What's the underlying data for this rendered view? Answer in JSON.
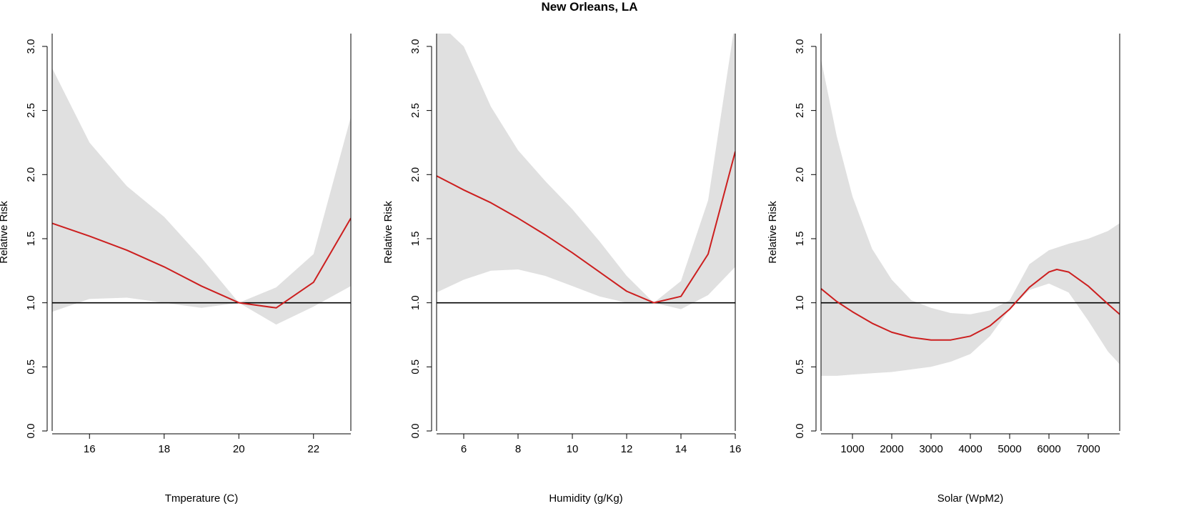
{
  "figure": {
    "title": "New Orleans, LA"
  },
  "chart_data": [
    {
      "type": "line",
      "title": "",
      "xlabel": "Tmperature (C)",
      "ylabel": "Relative Risk",
      "xlim": [
        15,
        23
      ],
      "ylim": [
        0,
        3.1
      ],
      "xticks": [
        16,
        18,
        20,
        22
      ],
      "yticks": [
        0.0,
        0.5,
        1.0,
        1.5,
        2.0,
        2.5,
        3.0
      ],
      "reference_line": 1.0,
      "colors": {
        "line": "#cc1f1f",
        "band": "#e0e0e0",
        "reference": "#000000"
      },
      "series": [
        {
          "x": [
            15,
            16,
            17,
            18,
            19,
            20,
            21,
            22,
            23
          ],
          "y": [
            1.62,
            1.52,
            1.41,
            1.28,
            1.13,
            1.0,
            0.96,
            1.16,
            1.66
          ]
        }
      ],
      "band": {
        "x": [
          15,
          16,
          17,
          18,
          19,
          20,
          21,
          22,
          23
        ],
        "lower": [
          0.93,
          1.03,
          1.04,
          1.0,
          0.96,
          1.0,
          0.83,
          0.97,
          1.13
        ],
        "upper": [
          2.83,
          2.25,
          1.91,
          1.67,
          1.35,
          1.0,
          1.12,
          1.38,
          2.45
        ]
      }
    },
    {
      "type": "line",
      "title": "",
      "xlabel": "Humidity (g/Kg)",
      "ylabel": "Relative Risk",
      "xlim": [
        5,
        16
      ],
      "ylim": [
        0,
        3.1
      ],
      "xticks": [
        6,
        8,
        10,
        12,
        14,
        16
      ],
      "yticks": [
        0.0,
        0.5,
        1.0,
        1.5,
        2.0,
        2.5,
        3.0
      ],
      "reference_line": 1.0,
      "colors": {
        "line": "#cc1f1f",
        "band": "#e0e0e0",
        "reference": "#000000"
      },
      "series": [
        {
          "x": [
            5,
            6,
            7,
            8,
            9,
            10,
            11,
            12,
            13,
            14,
            15,
            16
          ],
          "y": [
            1.99,
            1.88,
            1.78,
            1.66,
            1.53,
            1.39,
            1.24,
            1.09,
            1.0,
            1.05,
            1.38,
            2.18
          ]
        }
      ],
      "band": {
        "x": [
          5,
          6,
          7,
          8,
          9,
          10,
          11,
          12,
          13,
          14,
          15,
          16
        ],
        "lower": [
          1.08,
          1.18,
          1.25,
          1.26,
          1.21,
          1.13,
          1.05,
          1.0,
          1.0,
          0.95,
          1.06,
          1.28
        ],
        "upper": [
          3.2,
          3.0,
          2.53,
          2.19,
          1.95,
          1.73,
          1.48,
          1.21,
          1.0,
          1.17,
          1.8,
          3.2
        ]
      }
    },
    {
      "type": "line",
      "title": "",
      "xlabel": "Solar (WpM2)",
      "ylabel": "Relative Risk",
      "xlim": [
        200,
        7800
      ],
      "ylim": [
        0,
        3.1
      ],
      "xticks": [
        1000,
        2000,
        3000,
        4000,
        5000,
        6000,
        7000
      ],
      "yticks": [
        0.0,
        0.5,
        1.0,
        1.5,
        2.0,
        2.5,
        3.0
      ],
      "reference_line": 1.0,
      "colors": {
        "line": "#cc1f1f",
        "band": "#e0e0e0",
        "reference": "#000000"
      },
      "series": [
        {
          "x": [
            200,
            600,
            1000,
            1500,
            2000,
            2500,
            3000,
            3500,
            4000,
            4500,
            5000,
            5500,
            6000,
            6200,
            6500,
            7000,
            7500,
            7800
          ],
          "y": [
            1.11,
            1.01,
            0.93,
            0.84,
            0.77,
            0.73,
            0.71,
            0.71,
            0.74,
            0.82,
            0.95,
            1.12,
            1.24,
            1.26,
            1.24,
            1.13,
            0.99,
            0.91
          ]
        }
      ],
      "band": {
        "x": [
          200,
          600,
          1000,
          1500,
          2000,
          2500,
          3000,
          3500,
          4000,
          4500,
          5000,
          5500,
          6000,
          6500,
          7000,
          7500,
          7800
        ],
        "lower": [
          0.43,
          0.43,
          0.44,
          0.45,
          0.46,
          0.48,
          0.5,
          0.54,
          0.6,
          0.74,
          0.95,
          1.1,
          1.15,
          1.08,
          0.86,
          0.62,
          0.52
        ],
        "upper": [
          2.9,
          2.3,
          1.83,
          1.42,
          1.18,
          1.02,
          0.96,
          0.92,
          0.91,
          0.94,
          1.02,
          1.3,
          1.41,
          1.46,
          1.5,
          1.56,
          1.62
        ]
      }
    }
  ]
}
